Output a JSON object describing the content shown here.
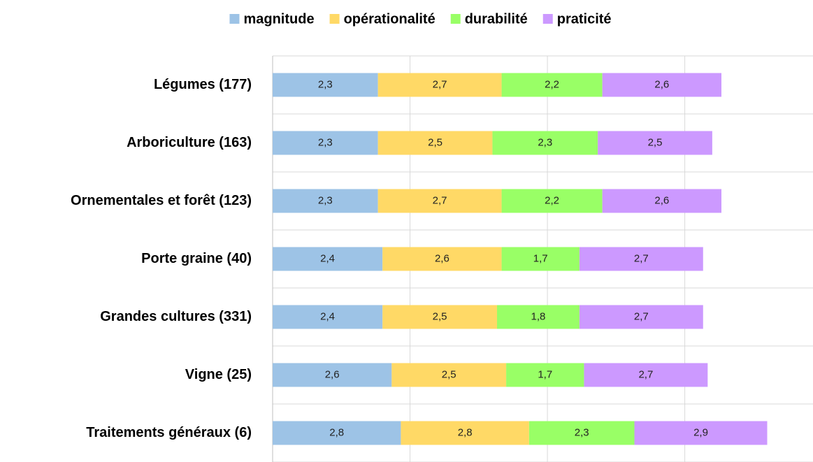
{
  "chart_data": {
    "type": "stacked-bar-horizontal",
    "categories": [
      "Légumes (177)",
      "Arboriculture (163)",
      "Ornementales et forêt (123)",
      "Porte graine (40)",
      "Grandes cultures (331)",
      "Vigne (25)",
      "Traitements généraux (6)"
    ],
    "series": [
      {
        "name": "magnitude",
        "color": "#9dc3e6",
        "values": [
          2.3,
          2.3,
          2.3,
          2.4,
          2.4,
          2.6,
          2.8
        ],
        "value_labels": [
          "2,3",
          "2,3",
          "2,3",
          "2,4",
          "2,4",
          "2,6",
          "2,8"
        ]
      },
      {
        "name": "opérationalité",
        "color": "#ffd966",
        "values": [
          2.7,
          2.5,
          2.7,
          2.6,
          2.5,
          2.5,
          2.8
        ],
        "value_labels": [
          "2,7",
          "2,5",
          "2,7",
          "2,6",
          "2,5",
          "2,5",
          "2,8"
        ]
      },
      {
        "name": "durabilité",
        "color": "#99ff66",
        "values": [
          2.2,
          2.3,
          2.2,
          1.7,
          1.8,
          1.7,
          2.3
        ],
        "value_labels": [
          "2,2",
          "2,3",
          "2,2",
          "1,7",
          "1,8",
          "1,7",
          "2,3"
        ]
      },
      {
        "name": "praticité",
        "color": "#cc99ff",
        "values": [
          2.6,
          2.5,
          2.6,
          2.7,
          2.7,
          2.7,
          2.9
        ],
        "value_labels": [
          "2,6",
          "2,5",
          "2,6",
          "2,7",
          "2,7",
          "2,7",
          "2,9"
        ]
      }
    ],
    "xlim": [
      0,
      11.8
    ],
    "xticks": [
      0,
      3,
      6,
      9
    ],
    "grid": true,
    "legend": "top"
  }
}
